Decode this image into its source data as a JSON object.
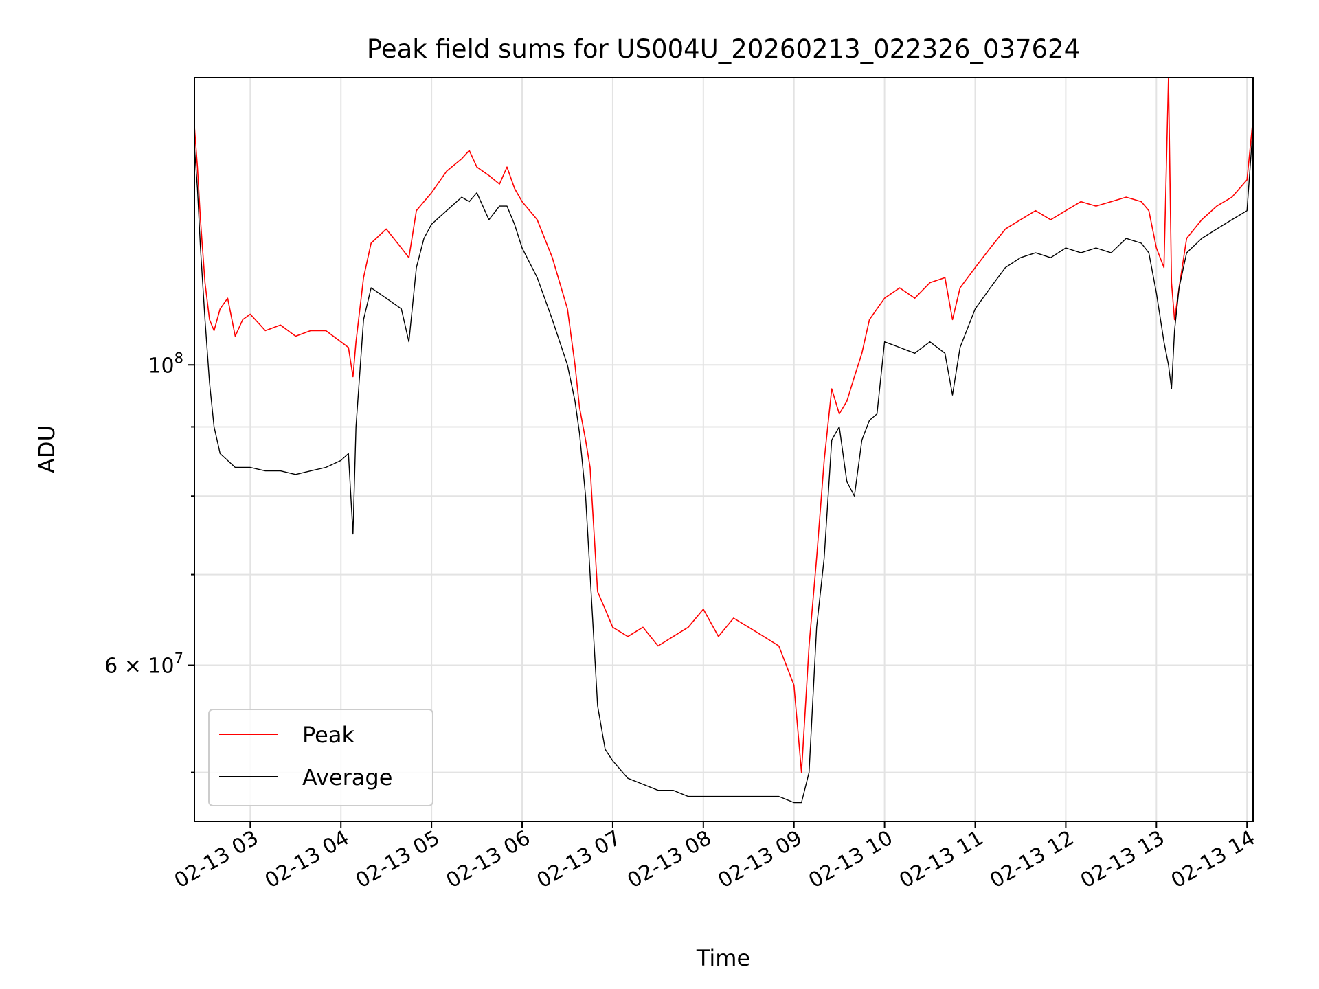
{
  "chart_data": {
    "type": "line",
    "title": "Peak field sums for US004U_20260213_022326_037624",
    "xlabel": "Time",
    "ylabel": "ADU",
    "y_scale": "log",
    "grid": true,
    "legend_position": "lower-left",
    "xlim": [
      "2026-02-13 02:23",
      "2026-02-13 14:04"
    ],
    "ylim": [
      46000000,
      163000000
    ],
    "x_ticks": [
      {
        "time": "2026-02-13 03:00",
        "label": "02-13 03"
      },
      {
        "time": "2026-02-13 04:00",
        "label": "02-13 04"
      },
      {
        "time": "2026-02-13 05:00",
        "label": "02-13 05"
      },
      {
        "time": "2026-02-13 06:00",
        "label": "02-13 06"
      },
      {
        "time": "2026-02-13 07:00",
        "label": "02-13 07"
      },
      {
        "time": "2026-02-13 08:00",
        "label": "02-13 08"
      },
      {
        "time": "2026-02-13 09:00",
        "label": "02-13 09"
      },
      {
        "time": "2026-02-13 10:00",
        "label": "02-13 10"
      },
      {
        "time": "2026-02-13 11:00",
        "label": "02-13 11"
      },
      {
        "time": "2026-02-13 12:00",
        "label": "02-13 12"
      },
      {
        "time": "2026-02-13 13:00",
        "label": "02-13 13"
      },
      {
        "time": "2026-02-13 14:00",
        "label": "02-13 14"
      }
    ],
    "y_major_ticks": [
      {
        "value": 60000000,
        "label_mantissa": "6 × 10",
        "label_exp": "7"
      },
      {
        "value": 100000000,
        "label_mantissa": "10",
        "label_exp": "8"
      }
    ],
    "y_minor_ticks": [
      50000000,
      70000000,
      80000000,
      90000000
    ],
    "series": [
      {
        "name": "Peak",
        "color": "#ff0000",
        "x": [
          "02:23",
          "02:25",
          "02:27",
          "02:30",
          "02:33",
          "02:36",
          "02:40",
          "02:45",
          "02:50",
          "02:55",
          "03:00",
          "03:10",
          "03:20",
          "03:30",
          "03:40",
          "03:50",
          "04:00",
          "04:05",
          "04:08",
          "04:10",
          "04:15",
          "04:20",
          "04:30",
          "04:40",
          "04:45",
          "04:50",
          "04:55",
          "05:00",
          "05:10",
          "05:20",
          "05:25",
          "05:30",
          "05:38",
          "05:45",
          "05:50",
          "05:55",
          "06:00",
          "06:10",
          "06:20",
          "06:30",
          "06:35",
          "06:38",
          "06:42",
          "06:45",
          "06:50",
          "06:55",
          "07:00",
          "07:10",
          "07:20",
          "07:30",
          "07:40",
          "07:50",
          "08:00",
          "08:10",
          "08:20",
          "08:30",
          "08:40",
          "08:50",
          "09:00",
          "09:05",
          "09:10",
          "09:15",
          "09:20",
          "09:25",
          "09:30",
          "09:35",
          "09:40",
          "09:45",
          "09:50",
          "09:55",
          "10:00",
          "10:10",
          "10:20",
          "10:30",
          "10:40",
          "10:45",
          "10:50",
          "11:00",
          "11:10",
          "11:20",
          "11:30",
          "11:40",
          "11:50",
          "12:00",
          "12:10",
          "12:20",
          "12:30",
          "12:40",
          "12:50",
          "12:55",
          "13:00",
          "13:05",
          "13:08",
          "13:10",
          "13:12",
          "13:15",
          "13:20",
          "13:30",
          "13:40",
          "13:50",
          "14:00",
          "14:04"
        ],
        "y": [
          150000000,
          140000000,
          128000000,
          115000000,
          108000000,
          106000000,
          110000000,
          112000000,
          105000000,
          108000000,
          109000000,
          106000000,
          107000000,
          105000000,
          106000000,
          106000000,
          104000000,
          103000000,
          98000000,
          104000000,
          116000000,
          123000000,
          126000000,
          122000000,
          120000000,
          130000000,
          132000000,
          134000000,
          139000000,
          142000000,
          144000000,
          140000000,
          138000000,
          136000000,
          140000000,
          135000000,
          132000000,
          128000000,
          120000000,
          110000000,
          100000000,
          93000000,
          88000000,
          84000000,
          68000000,
          66000000,
          64000000,
          63000000,
          64000000,
          62000000,
          63000000,
          64000000,
          66000000,
          63000000,
          65000000,
          64000000,
          63000000,
          62000000,
          58000000,
          50000000,
          62000000,
          72000000,
          85000000,
          96000000,
          92000000,
          94000000,
          98000000,
          102000000,
          108000000,
          110000000,
          112000000,
          114000000,
          112000000,
          115000000,
          116000000,
          108000000,
          114000000,
          118000000,
          122000000,
          126000000,
          128000000,
          130000000,
          128000000,
          130000000,
          132000000,
          131000000,
          132000000,
          133000000,
          132000000,
          130000000,
          122000000,
          118000000,
          163000000,
          115000000,
          108000000,
          114000000,
          124000000,
          128000000,
          131000000,
          133000000,
          137000000,
          152000000
        ]
      },
      {
        "name": "Average",
        "color": "#000000",
        "x": [
          "02:23",
          "02:25",
          "02:27",
          "02:30",
          "02:33",
          "02:36",
          "02:40",
          "02:45",
          "02:50",
          "02:55",
          "03:00",
          "03:10",
          "03:20",
          "03:30",
          "03:40",
          "03:50",
          "04:00",
          "04:05",
          "04:08",
          "04:10",
          "04:15",
          "04:20",
          "04:30",
          "04:40",
          "04:45",
          "04:50",
          "04:55",
          "05:00",
          "05:10",
          "05:20",
          "05:25",
          "05:30",
          "05:38",
          "05:45",
          "05:50",
          "05:55",
          "06:00",
          "06:10",
          "06:20",
          "06:30",
          "06:35",
          "06:38",
          "06:42",
          "06:45",
          "06:50",
          "06:55",
          "07:00",
          "07:10",
          "07:20",
          "07:30",
          "07:40",
          "07:50",
          "08:00",
          "08:10",
          "08:20",
          "08:30",
          "08:40",
          "08:50",
          "09:00",
          "09:05",
          "09:10",
          "09:15",
          "09:20",
          "09:25",
          "09:30",
          "09:35",
          "09:40",
          "09:45",
          "09:50",
          "09:55",
          "10:00",
          "10:10",
          "10:20",
          "10:30",
          "10:40",
          "10:45",
          "10:50",
          "11:00",
          "11:10",
          "11:20",
          "11:30",
          "11:40",
          "11:50",
          "12:00",
          "12:10",
          "12:20",
          "12:30",
          "12:40",
          "12:50",
          "12:55",
          "13:00",
          "13:05",
          "13:08",
          "13:10",
          "13:12",
          "13:15",
          "13:20",
          "13:30",
          "13:40",
          "13:50",
          "14:00",
          "14:04"
        ],
        "y": [
          145000000,
          135000000,
          122000000,
          108000000,
          97000000,
          90000000,
          86000000,
          85000000,
          84000000,
          84000000,
          84000000,
          83500000,
          83500000,
          83000000,
          83500000,
          84000000,
          85000000,
          86000000,
          75000000,
          90000000,
          108000000,
          114000000,
          112000000,
          110000000,
          104000000,
          118000000,
          124000000,
          127000000,
          130000000,
          133000000,
          132000000,
          134000000,
          128000000,
          131000000,
          131000000,
          127000000,
          122000000,
          116000000,
          108000000,
          100000000,
          94000000,
          89000000,
          80000000,
          70000000,
          56000000,
          52000000,
          51000000,
          49500000,
          49000000,
          48500000,
          48500000,
          48000000,
          48000000,
          48000000,
          48000000,
          48000000,
          48000000,
          48000000,
          47500000,
          47500000,
          50000000,
          64000000,
          72000000,
          88000000,
          90000000,
          82000000,
          80000000,
          88000000,
          91000000,
          92000000,
          104000000,
          103000000,
          102000000,
          104000000,
          102000000,
          95000000,
          103000000,
          110000000,
          114000000,
          118000000,
          120000000,
          121000000,
          120000000,
          122000000,
          121000000,
          122000000,
          121000000,
          124000000,
          123000000,
          121000000,
          113000000,
          104000000,
          100000000,
          96000000,
          106000000,
          114000000,
          121000000,
          124000000,
          126000000,
          128000000,
          130000000,
          150000000
        ]
      }
    ]
  }
}
